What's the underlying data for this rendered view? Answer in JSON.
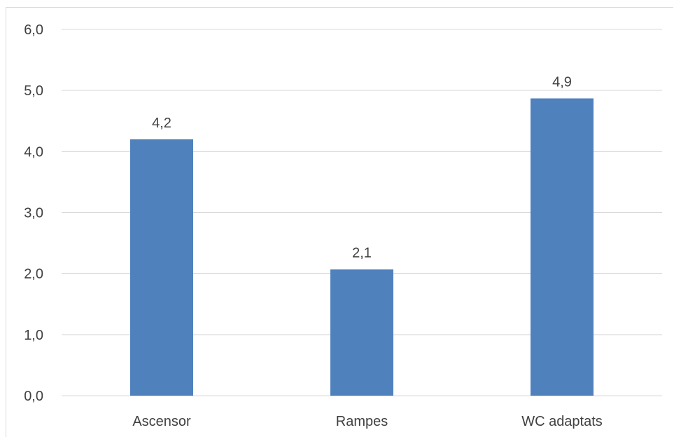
{
  "chart_data": {
    "type": "bar",
    "categories": [
      "Ascensor",
      "Rampes",
      "WC adaptats"
    ],
    "values": [
      4.2,
      2.07,
      4.87
    ],
    "data_labels": [
      "4,2",
      "2,1",
      "4,9"
    ],
    "ylim": [
      0,
      6
    ],
    "yticks": [
      0,
      1,
      2,
      3,
      4,
      5,
      6
    ],
    "ytick_labels": [
      "0,0",
      "1,0",
      "2,0",
      "3,0",
      "4,0",
      "5,0",
      "6,0"
    ],
    "title": "",
    "xlabel": "",
    "ylabel": "",
    "grid": true,
    "legend": "none",
    "colors": {
      "bar": "#4f81bd",
      "grid": "#d9d9d9",
      "text": "#404040"
    }
  }
}
